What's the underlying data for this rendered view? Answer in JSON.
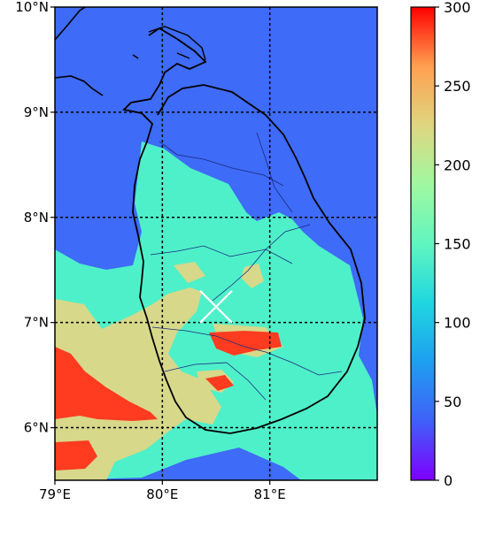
{
  "chart_data": {
    "type": "heatmap",
    "title": "",
    "xlabel": "",
    "ylabel": "",
    "lon_range": [
      79,
      82
    ],
    "lat_range": [
      5.5,
      10
    ],
    "x_ticks": [
      {
        "value": 79,
        "label": "79°E"
      },
      {
        "value": 80,
        "label": "80°E"
      },
      {
        "value": 81,
        "label": "81°E"
      }
    ],
    "y_ticks": [
      {
        "value": 10,
        "label": "10°N"
      },
      {
        "value": 9,
        "label": "9°N"
      },
      {
        "value": 8,
        "label": "8°N"
      },
      {
        "value": 7,
        "label": "7°N"
      },
      {
        "value": 6,
        "label": "6°N"
      }
    ],
    "gridlines": {
      "lon": [
        80,
        81
      ],
      "lat": [
        9,
        8,
        7,
        6
      ],
      "style": "dotted"
    },
    "colorbar": {
      "min": 0,
      "max": 300,
      "colormap": "rainbow",
      "ticks": [
        {
          "value": 300,
          "label": "300"
        },
        {
          "value": 250,
          "label": "250"
        },
        {
          "value": 200,
          "label": "200"
        },
        {
          "value": 150,
          "label": "150"
        },
        {
          "value": 100,
          "label": "100"
        },
        {
          "value": 50,
          "label": "50"
        },
        {
          "value": 0,
          "label": "0"
        }
      ]
    },
    "marker": {
      "symbol": "x",
      "lon": 80.5,
      "lat": 7.15,
      "color": "#ffffff"
    },
    "background_level": 40,
    "levels": [
      {
        "value": 40,
        "color": "#3e6bf7"
      },
      {
        "value": 120,
        "color": "#4ef0c9"
      },
      {
        "value": 200,
        "color": "#d7d88a"
      },
      {
        "value": 280,
        "color": "#ff3b20"
      }
    ]
  }
}
